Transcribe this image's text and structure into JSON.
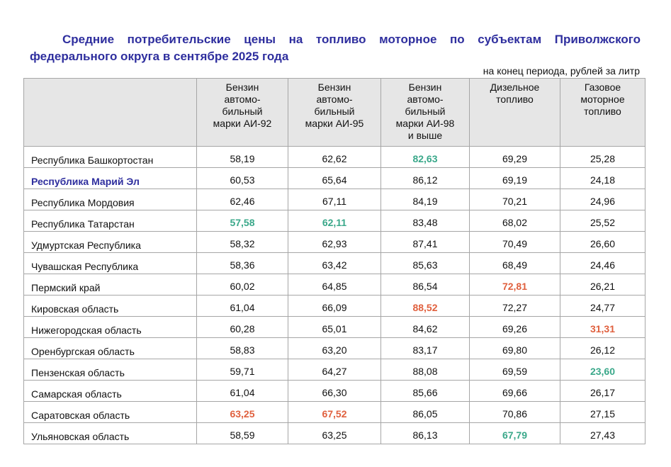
{
  "title": "Средние потребительские цены на топливо моторное по субъектам Приволжского федерального округа в сентябре 2025 года",
  "units": "на конец периода, рублей за литр",
  "colors": {
    "title": "#2e2e9e",
    "min_value": "#3aa88a",
    "max_value": "#e0603e",
    "header_bg": "#e6e6e6"
  },
  "columns": [
    "",
    "Бензин\nавтомо-\nбильный\nмарки АИ-92",
    "Бензин\nавтомо-\nбильный\nмарки АИ-95",
    "Бензин\nавтомо-\nбильный\nмарки АИ-98\nи выше",
    "Дизельное\nтопливо",
    "Газовое\nмоторное\nтопливо"
  ],
  "rows": [
    {
      "region": "Республика Башкортостан",
      "values": [
        "58,19",
        "62,62",
        "82,63",
        "69,29",
        "25,28"
      ],
      "marks": [
        "",
        "",
        "min",
        "",
        ""
      ]
    },
    {
      "region": "Республика Марий Эл",
      "highlight": true,
      "values": [
        "60,53",
        "65,64",
        "86,12",
        "69,19",
        "24,18"
      ],
      "marks": [
        "",
        "",
        "",
        "",
        ""
      ]
    },
    {
      "region": "Республика Мордовия",
      "values": [
        "62,46",
        "67,11",
        "84,19",
        "70,21",
        "24,96"
      ],
      "marks": [
        "",
        "",
        "",
        "",
        ""
      ]
    },
    {
      "region": "Республика Татарстан",
      "values": [
        "57,58",
        "62,11",
        "83,48",
        "68,02",
        "25,52"
      ],
      "marks": [
        "min",
        "min",
        "",
        "",
        ""
      ]
    },
    {
      "region": "Удмуртская Республика",
      "values": [
        "58,32",
        "62,93",
        "87,41",
        "70,49",
        "26,60"
      ],
      "marks": [
        "",
        "",
        "",
        "",
        ""
      ]
    },
    {
      "region": "Чувашская Республика",
      "values": [
        "58,36",
        "63,42",
        "85,63",
        "68,49",
        "24,46"
      ],
      "marks": [
        "",
        "",
        "",
        "",
        ""
      ]
    },
    {
      "region": "Пермский край",
      "values": [
        "60,02",
        "64,85",
        "86,54",
        "72,81",
        "26,21"
      ],
      "marks": [
        "",
        "",
        "",
        "max",
        ""
      ]
    },
    {
      "region": "Кировская область",
      "values": [
        "61,04",
        "66,09",
        "88,52",
        "72,27",
        "24,77"
      ],
      "marks": [
        "",
        "",
        "max",
        "",
        ""
      ]
    },
    {
      "region": "Нижегородская область",
      "values": [
        "60,28",
        "65,01",
        "84,62",
        "69,26",
        "31,31"
      ],
      "marks": [
        "",
        "",
        "",
        "",
        "max"
      ]
    },
    {
      "region": "Оренбургская область",
      "values": [
        "58,83",
        "63,20",
        "83,17",
        "69,80",
        "26,12"
      ],
      "marks": [
        "",
        "",
        "",
        "",
        ""
      ]
    },
    {
      "region": "Пензенская область",
      "values": [
        "59,71",
        "64,27",
        "88,08",
        "69,59",
        "23,60"
      ],
      "marks": [
        "",
        "",
        "",
        "",
        "min"
      ]
    },
    {
      "region": "Самарская область",
      "values": [
        "61,04",
        "66,30",
        "85,66",
        "69,66",
        "26,17"
      ],
      "marks": [
        "",
        "",
        "",
        "",
        ""
      ]
    },
    {
      "region": "Саратовская область",
      "values": [
        "63,25",
        "67,52",
        "86,05",
        "70,86",
        "27,15"
      ],
      "marks": [
        "max",
        "max",
        "",
        "",
        ""
      ]
    },
    {
      "region": "Ульяновская область",
      "values": [
        "58,59",
        "63,25",
        "86,13",
        "67,79",
        "27,43"
      ],
      "marks": [
        "",
        "",
        "",
        "min",
        ""
      ]
    }
  ]
}
